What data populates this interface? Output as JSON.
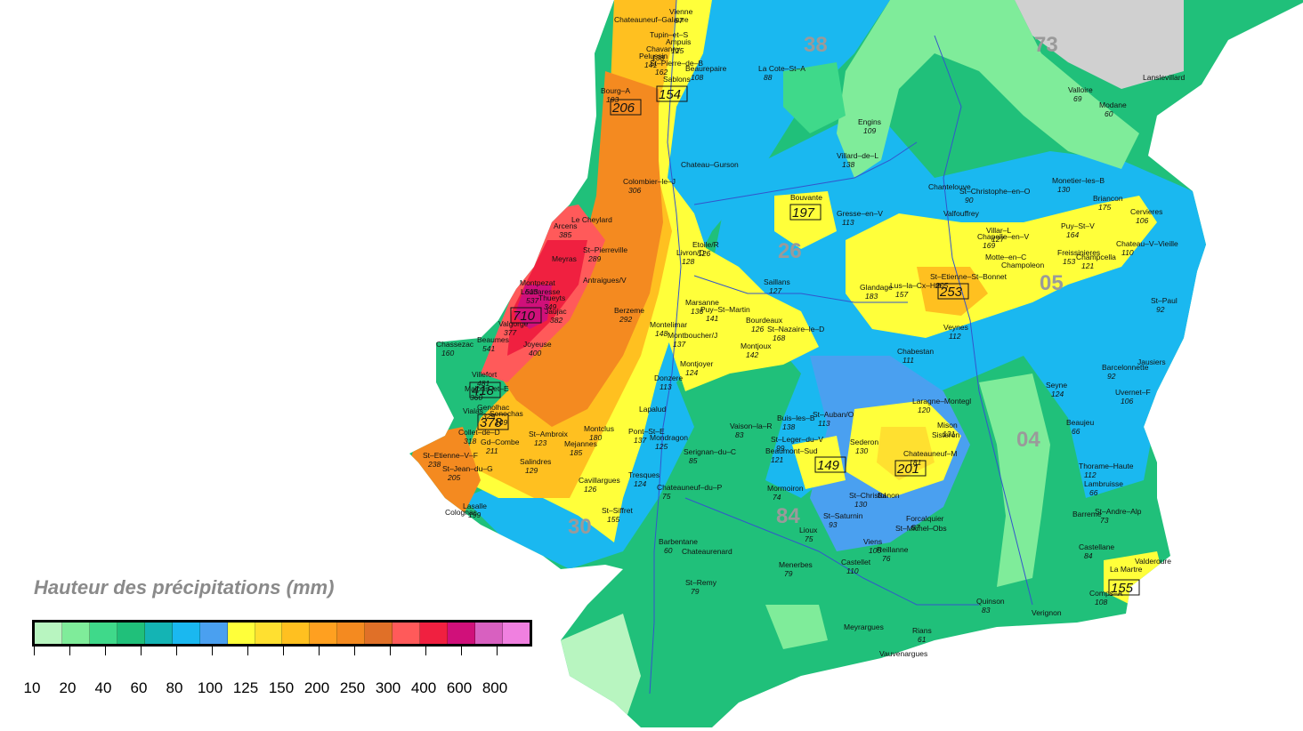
{
  "legend": {
    "title": "Hauteur des précipitations (mm)",
    "colors": [
      "#b8f5c0",
      "#7fec9a",
      "#3fd98a",
      "#20c07a",
      "#14b4b4",
      "#1ab8f0",
      "#4aa0f0",
      "#ffff3a",
      "#ffe030",
      "#ffc020",
      "#ffa020",
      "#f48a20",
      "#e07028",
      "#ff5a5a",
      "#f02040",
      "#d0107a",
      "#d860c0",
      "#f080e0"
    ],
    "labels": [
      "10",
      "20",
      "40",
      "60",
      "80",
      "100",
      "125",
      "150",
      "200",
      "250",
      "300",
      "400",
      "600",
      "800"
    ]
  },
  "departments": [
    "38",
    "73",
    "26",
    "05",
    "30",
    "84",
    "04"
  ],
  "maxima": [
    "206",
    "154",
    "197",
    "253",
    "710",
    "418",
    "378",
    "201",
    "149",
    "155"
  ],
  "towns": [
    {
      "name": "Chateauneuf–Galaure",
      "v": ""
    },
    {
      "name": "Vienne",
      "v": "97"
    },
    {
      "name": "Tupin–et–S",
      "v": ""
    },
    {
      "name": "Ampuis",
      "v": "125"
    },
    {
      "name": "Pelussin",
      "v": "141"
    },
    {
      "name": "Chavanay",
      "v": "138"
    },
    {
      "name": "St–Pierre–de–B",
      "v": "162"
    },
    {
      "name": "Sablons",
      "v": ""
    },
    {
      "name": "Beaurepaire",
      "v": "108"
    },
    {
      "name": "La Cote–St–A",
      "v": "88"
    },
    {
      "name": "Bourg–A",
      "v": "193"
    },
    {
      "name": "Engins",
      "v": "109"
    },
    {
      "name": "Villard–de–L",
      "v": "138"
    },
    {
      "name": "Lanslevillard",
      "v": ""
    },
    {
      "name": "Modane",
      "v": "60"
    },
    {
      "name": "Valloire",
      "v": "69"
    },
    {
      "name": "Chateau–Gurson",
      "v": ""
    },
    {
      "name": "Colombier–le–J",
      "v": "306"
    },
    {
      "name": "Bouvante",
      "v": ""
    },
    {
      "name": "Gresse–en–V",
      "v": "113"
    },
    {
      "name": "Chantelouve",
      "v": ""
    },
    {
      "name": "St–Christophe–en–O",
      "v": "90"
    },
    {
      "name": "Monetier–les–B",
      "v": "130"
    },
    {
      "name": "Briancon",
      "v": "175"
    },
    {
      "name": "Cervieres",
      "v": "106"
    },
    {
      "name": "Le Cheylard",
      "v": ""
    },
    {
      "name": "Arcens",
      "v": "385"
    },
    {
      "name": "St–Pierreville",
      "v": "289"
    },
    {
      "name": "Etoile/R",
      "v": "126"
    },
    {
      "name": "Livron/D",
      "v": "128"
    },
    {
      "name": "Valfouffrey",
      "v": ""
    },
    {
      "name": "Villar–L",
      "v": "127"
    },
    {
      "name": "Chapelle–en–V",
      "v": "169"
    },
    {
      "name": "Puy–St–V",
      "v": "164"
    },
    {
      "name": "Chateau–V–Vieille",
      "v": "110"
    },
    {
      "name": "Freissinieres",
      "v": "153"
    },
    {
      "name": "Champcella",
      "v": "121"
    },
    {
      "name": "Motte–en–C",
      "v": ""
    },
    {
      "name": "Champoleon",
      "v": ""
    },
    {
      "name": "Saillans",
      "v": "127"
    },
    {
      "name": "Glandage",
      "v": "183"
    },
    {
      "name": "Lus–la–Cx–Hte",
      "v": "157"
    },
    {
      "name": "St–Etienne–St–Bonnet",
      "v": "205"
    },
    {
      "name": "Veynes",
      "v": "112"
    },
    {
      "name": "Marsanne",
      "v": "136"
    },
    {
      "name": "Puy–St–Martin",
      "v": "141"
    },
    {
      "name": "Berzeme",
      "v": "292"
    },
    {
      "name": "Montelimar",
      "v": "148"
    },
    {
      "name": "Montboucher/J",
      "v": "137"
    },
    {
      "name": "Bourdeaux",
      "v": "126"
    },
    {
      "name": "St–Nazaire–le–D",
      "v": "168"
    },
    {
      "name": "Montjoux",
      "v": "142"
    },
    {
      "name": "Montjoyer",
      "v": "124"
    },
    {
      "name": "Chabestan",
      "v": "111"
    },
    {
      "name": "St–Paul",
      "v": "92"
    },
    {
      "name": "Barcelonnette",
      "v": "92"
    },
    {
      "name": "Jausiers",
      "v": ""
    },
    {
      "name": "Uvernet–F",
      "v": "106"
    },
    {
      "name": "Seyne",
      "v": "124"
    },
    {
      "name": "Donzere",
      "v": "113"
    },
    {
      "name": "Laragne–Montegl",
      "v": "120"
    },
    {
      "name": "Lapalud",
      "v": ""
    },
    {
      "name": "St–Auban/O",
      "v": "113"
    },
    {
      "name": "Buis–les–B",
      "v": "138"
    },
    {
      "name": "Vaison–la–R",
      "v": "83"
    },
    {
      "name": "Montclus",
      "v": "180"
    },
    {
      "name": "Pont–St–E",
      "v": "137"
    },
    {
      "name": "Mondragon",
      "v": "125"
    },
    {
      "name": "Sederon",
      "v": "130"
    },
    {
      "name": "Chateauneuf–M",
      "v": "181"
    },
    {
      "name": "Mison",
      "v": "131"
    },
    {
      "name": "Sisteron",
      "v": ""
    },
    {
      "name": "Beaujeu",
      "v": "66"
    },
    {
      "name": "St–Leger–du–V",
      "v": "99"
    },
    {
      "name": "Beaumont–Sud",
      "v": "121"
    },
    {
      "name": "Serignan–du–C",
      "v": "85"
    },
    {
      "name": "Mejannes",
      "v": "185"
    },
    {
      "name": "St–Ambroix",
      "v": "123"
    },
    {
      "name": "Salindres",
      "v": "129"
    },
    {
      "name": "Cavillargues",
      "v": "126"
    },
    {
      "name": "Tresques",
      "v": "124"
    },
    {
      "name": "Chateauneuf–du–P",
      "v": "75"
    },
    {
      "name": "Mormoiron",
      "v": "74"
    },
    {
      "name": "St–Christol",
      "v": "130"
    },
    {
      "name": "Banon",
      "v": ""
    },
    {
      "name": "Thorame–Haute",
      "v": "112"
    },
    {
      "name": "Lambruisse",
      "v": "66"
    },
    {
      "name": "St–Andre–Alp",
      "v": "73"
    },
    {
      "name": "Barreme",
      "v": ""
    },
    {
      "name": "St–Siffret",
      "v": "155"
    },
    {
      "name": "Lioux",
      "v": "75"
    },
    {
      "name": "St–Saturnin",
      "v": "93"
    },
    {
      "name": "Forcalquier",
      "v": "87"
    },
    {
      "name": "St–Michel–Obs",
      "v": ""
    },
    {
      "name": "Castellane",
      "v": "84"
    },
    {
      "name": "Barbentane",
      "v": "60"
    },
    {
      "name": "Chateaurenard",
      "v": ""
    },
    {
      "name": "Viens",
      "v": "100"
    },
    {
      "name": "Reillanne",
      "v": "76"
    },
    {
      "name": "La Martre",
      "v": ""
    },
    {
      "name": "Valderoure",
      "v": ""
    },
    {
      "name": "Comps–A",
      "v": "108"
    },
    {
      "name": "St–Remy",
      "v": "79"
    },
    {
      "name": "Menerbes",
      "v": "79"
    },
    {
      "name": "Castellet",
      "v": "110"
    },
    {
      "name": "Quinson",
      "v": "83"
    },
    {
      "name": "Verignon",
      "v": ""
    },
    {
      "name": "Meyrargues",
      "v": ""
    },
    {
      "name": "Rians",
      "v": "61"
    },
    {
      "name": "Vauvenargues",
      "v": ""
    },
    {
      "name": "Chassezac",
      "v": "160"
    },
    {
      "name": "Villefort",
      "v": "481"
    },
    {
      "name": "Malons–et–E",
      "v": "360"
    },
    {
      "name": "Genolhac",
      "v": "329"
    },
    {
      "name": "Vialas",
      "v": ""
    },
    {
      "name": "Senechas",
      "v": "149"
    },
    {
      "name": "Collet–de–D",
      "v": "318"
    },
    {
      "name": "Gd–Combe",
      "v": "211"
    },
    {
      "name": "St–Etienne–V–F",
      "v": "238"
    },
    {
      "name": "St–Jean–du–G",
      "v": "205"
    },
    {
      "name": "Lasalle",
      "v": "199"
    },
    {
      "name": "Colognac",
      "v": ""
    },
    {
      "name": "Montpezat",
      "v": "513"
    },
    {
      "name": "Meyras",
      "v": ""
    },
    {
      "name": "Jaujac",
      "v": "382"
    },
    {
      "name": "Thueyts",
      "v": "349"
    },
    {
      "name": "Antraigues/V",
      "v": ""
    },
    {
      "name": "Loubaresse",
      "v": "537"
    },
    {
      "name": "Valgorge",
      "v": "377"
    },
    {
      "name": "Beaumes",
      "v": "541"
    },
    {
      "name": "Joyeuse",
      "v": "400"
    }
  ]
}
